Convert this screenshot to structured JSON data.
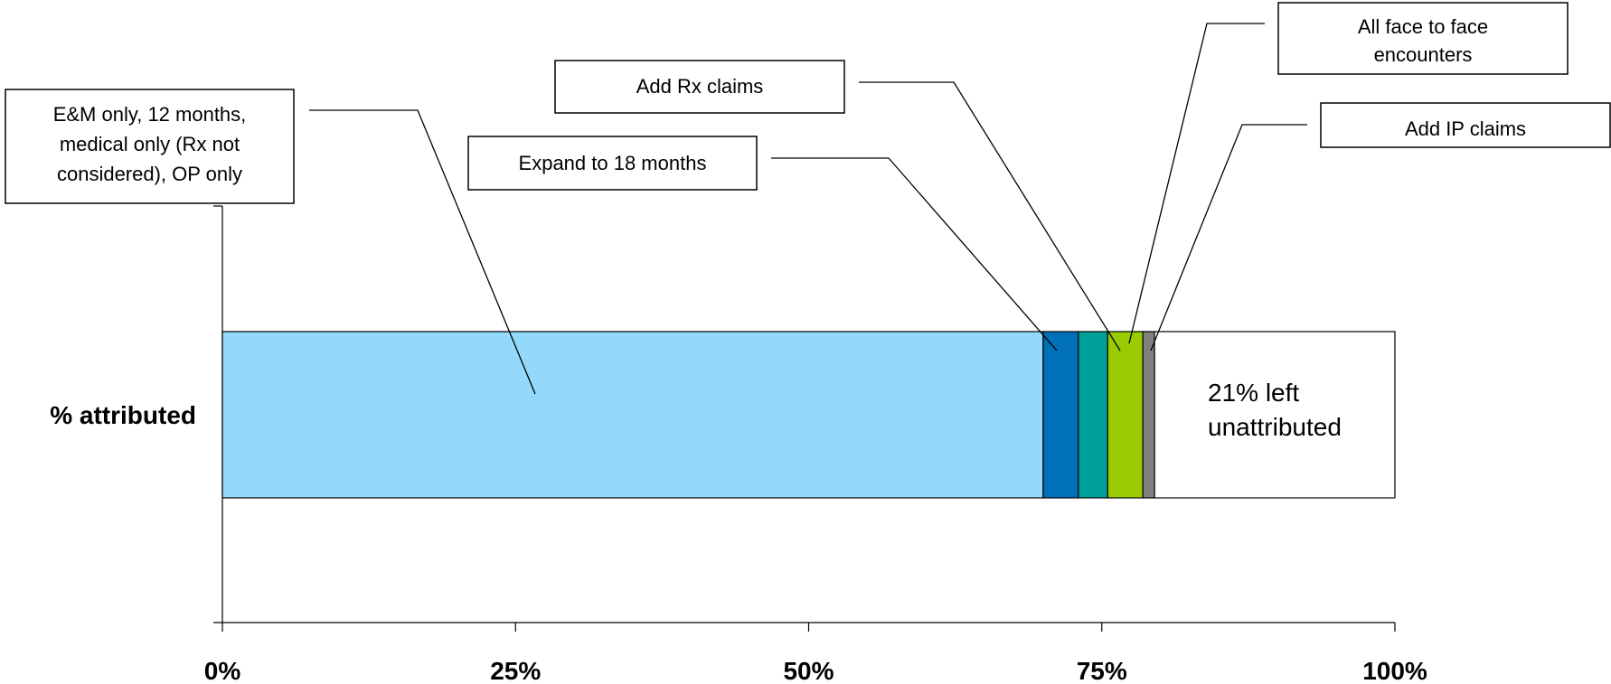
{
  "chart_data": {
    "type": "bar",
    "orientation": "horizontal",
    "stacked": true,
    "categories": [
      "% attributed"
    ],
    "xlim": [
      0,
      100
    ],
    "x_ticks": [
      "0%",
      "25%",
      "50%",
      "75%",
      "100%"
    ],
    "segments": [
      {
        "name": "E&M only, 12 months, medical only (Rx not considered), OP only",
        "start": 0,
        "value": 70,
        "color": "#92D9FC"
      },
      {
        "name": "Expand to 18 months",
        "start": 70,
        "value": 3,
        "color": "#0070B8"
      },
      {
        "name": "Add Rx claims",
        "start": 73,
        "value": 2.5,
        "color": "#00A19A"
      },
      {
        "name": "All face to face encounters",
        "start": 75.5,
        "value": 3,
        "color": "#99CC00"
      },
      {
        "name": "Add IP claims",
        "start": 78.5,
        "value": 1,
        "color": "#808080"
      }
    ],
    "remainder": {
      "value": 21,
      "label": "21% left unattributed",
      "color": "#FFFFFF"
    },
    "grid": false,
    "legend": "callouts"
  }
}
